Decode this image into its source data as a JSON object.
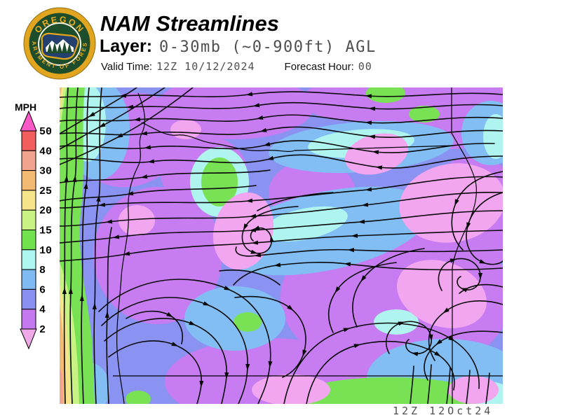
{
  "header": {
    "title": "NAM Streamlines",
    "layer_label": "Layer:",
    "layer_value": "0-30mb (~0-900ft) AGL",
    "valid_time_label": "Valid Time:",
    "valid_time_value": "12Z 10/12/2024",
    "forecast_hour_label": "Forecast Hour:",
    "forecast_hour_value": "00"
  },
  "logo": {
    "top_text": "OREGON",
    "bottom_text": "DEPARTMENT OF FORESTRY",
    "ring_color": "#1e4d2b",
    "band_color": "#e2a51f"
  },
  "legend": {
    "units_label": "MPH",
    "boundaries": [
      "50",
      "40",
      "30",
      "25",
      "20",
      "15",
      "10",
      "8",
      "6",
      "4",
      "2"
    ],
    "band_colors": [
      "#f25d5d",
      "#f2a38e",
      "#f2ba72",
      "#f6e48a",
      "#c9f285",
      "#72e14e",
      "#aef6f0",
      "#7fbbf2",
      "#8a90f0",
      "#c579f0"
    ],
    "above_max_color": "#f859c6",
    "below_min_color": "#efa9e9"
  },
  "map": {
    "footer_text": "12Z 12Oct24",
    "colors": {
      "under2": "#f2a6f0",
      "s2_4": "#c77cf2",
      "s4_6": "#8a92f2",
      "s6_8": "#82bef4",
      "s8_10": "#b0f4f0",
      "s10_15": "#79e254",
      "s15_20": "#c9f285",
      "s20_25": "#f6e48a",
      "s25_30": "#f2ba72",
      "s30_40": "#f2a38e",
      "stream": "#0a0a0a",
      "border": "#000000"
    }
  }
}
